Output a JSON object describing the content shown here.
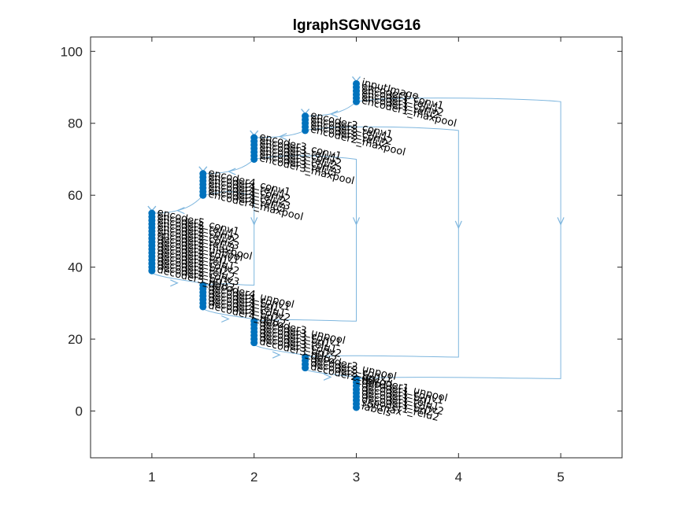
{
  "chart_data": {
    "type": "graph",
    "title": "lgraphSGNVGG16",
    "xlim": [
      0.4,
      5.6
    ],
    "ylim": [
      -13,
      104
    ],
    "xticks": [
      1,
      2,
      3,
      4,
      5
    ],
    "yticks": [
      0,
      20,
      40,
      60,
      80,
      100
    ],
    "node_color": "#0072BD",
    "edge_color": "#7EB6DE",
    "columns": [
      {
        "x": 3,
        "nodes": [
          {
            "y": 91,
            "label": "inputImage"
          },
          {
            "y": 90,
            "label": "encoder1_conv1"
          },
          {
            "y": 89,
            "label": "encoder1_relu1"
          },
          {
            "y": 88,
            "label": "encoder1_conv2"
          },
          {
            "y": 87,
            "label": "encoder1_relu2"
          },
          {
            "y": 86,
            "label": "encoder1_maxpool"
          }
        ]
      },
      {
        "x": 2.5,
        "nodes": [
          {
            "y": 82,
            "label": "encoder2_conv1"
          },
          {
            "y": 81,
            "label": "encoder2_relu1"
          },
          {
            "y": 80,
            "label": "encoder2_conv2"
          },
          {
            "y": 79,
            "label": "encoder2_relu2"
          },
          {
            "y": 78,
            "label": "encoder2_maxpool"
          }
        ]
      },
      {
        "x": 2,
        "nodes": [
          {
            "y": 76,
            "label": "encoder3_conv1"
          },
          {
            "y": 75,
            "label": "encoder3_relu1"
          },
          {
            "y": 74,
            "label": "encoder3_conv2"
          },
          {
            "y": 73,
            "label": "encoder3_relu2"
          },
          {
            "y": 72,
            "label": "encoder3_conv3"
          },
          {
            "y": 71,
            "label": "encoder3_relu3"
          },
          {
            "y": 70,
            "label": "encoder3_maxpool"
          }
        ]
      },
      {
        "x": 1.5,
        "nodes": [
          {
            "y": 66,
            "label": "encoder4_conv1"
          },
          {
            "y": 65,
            "label": "encoder4_relu1"
          },
          {
            "y": 64,
            "label": "encoder4_conv2"
          },
          {
            "y": 63,
            "label": "encoder4_relu2"
          },
          {
            "y": 62,
            "label": "encoder4_conv3"
          },
          {
            "y": 61,
            "label": "encoder4_relu3"
          },
          {
            "y": 60,
            "label": "encoder4_maxpool"
          }
        ]
      },
      {
        "x": 1,
        "nodes": [
          {
            "y": 55,
            "label": "encoder5_conv1"
          },
          {
            "y": 54,
            "label": "encoder5_relu1"
          },
          {
            "y": 53,
            "label": "encoder5_conv2"
          },
          {
            "y": 52,
            "label": "encoder5_relu2"
          },
          {
            "y": 51,
            "label": "encoder5_conv3"
          },
          {
            "y": 50,
            "label": "encoder5_relu3"
          },
          {
            "y": 49,
            "label": "encoder5_maxpool"
          },
          {
            "y": 48,
            "label": "decoder5_unpool"
          },
          {
            "y": 47,
            "label": "decoder5_conv1"
          },
          {
            "y": 46,
            "label": "decoder5_bn1"
          },
          {
            "y": 45,
            "label": "decoder5_relu1"
          },
          {
            "y": 44,
            "label": "decoder5_conv2"
          },
          {
            "y": 43,
            "label": "decoder5_bn2"
          },
          {
            "y": 42,
            "label": "decoder5_relu2"
          },
          {
            "y": 41,
            "label": "decoder5_conv3"
          },
          {
            "y": 40,
            "label": "decoder5_bn3"
          },
          {
            "y": 39,
            "label": "decoder5_relu3"
          }
        ]
      },
      {
        "x": 1.5,
        "nodes": [
          {
            "y": 35,
            "label": "decoder4_unpool"
          },
          {
            "y": 34,
            "label": "decoder4_conv1"
          },
          {
            "y": 33,
            "label": "decoder4_bn1"
          },
          {
            "y": 32,
            "label": "decoder4_relu1"
          },
          {
            "y": 31,
            "label": "decoder4_conv2"
          },
          {
            "y": 30,
            "label": "decoder4_bn2"
          },
          {
            "y": 29,
            "label": "decoder4_relu2"
          }
        ]
      },
      {
        "x": 2,
        "nodes": [
          {
            "y": 25,
            "label": "decoder3_unpool"
          },
          {
            "y": 24,
            "label": "decoder3_conv1"
          },
          {
            "y": 23,
            "label": "decoder3_bn1"
          },
          {
            "y": 22,
            "label": "decoder3_relu1"
          },
          {
            "y": 21,
            "label": "decoder3_conv2"
          },
          {
            "y": 20,
            "label": "decoder3_bn2"
          },
          {
            "y": 19,
            "label": "decoder3_relu2"
          }
        ]
      },
      {
        "x": 2.5,
        "nodes": [
          {
            "y": 15,
            "label": "decoder2_unpool"
          },
          {
            "y": 14,
            "label": "decoder2_conv1"
          },
          {
            "y": 13,
            "label": "decoder2_bn1"
          },
          {
            "y": 12,
            "label": "decoder2_relu1"
          }
        ]
      },
      {
        "x": 3,
        "nodes": [
          {
            "y": 9,
            "label": "decoder1_unpool"
          },
          {
            "y": 8,
            "label": "decoder1_conv1"
          },
          {
            "y": 7,
            "label": "decoder1_bn1"
          },
          {
            "y": 6,
            "label": "decoder1_relu1"
          },
          {
            "y": 5,
            "label": "decoder1_conv2"
          },
          {
            "y": 4,
            "label": "decoder1_bn2"
          },
          {
            "y": 3,
            "label": "decoder1_relu2"
          },
          {
            "y": 2,
            "label": "softmax"
          },
          {
            "y": 1,
            "label": "labels"
          }
        ]
      }
    ]
  }
}
